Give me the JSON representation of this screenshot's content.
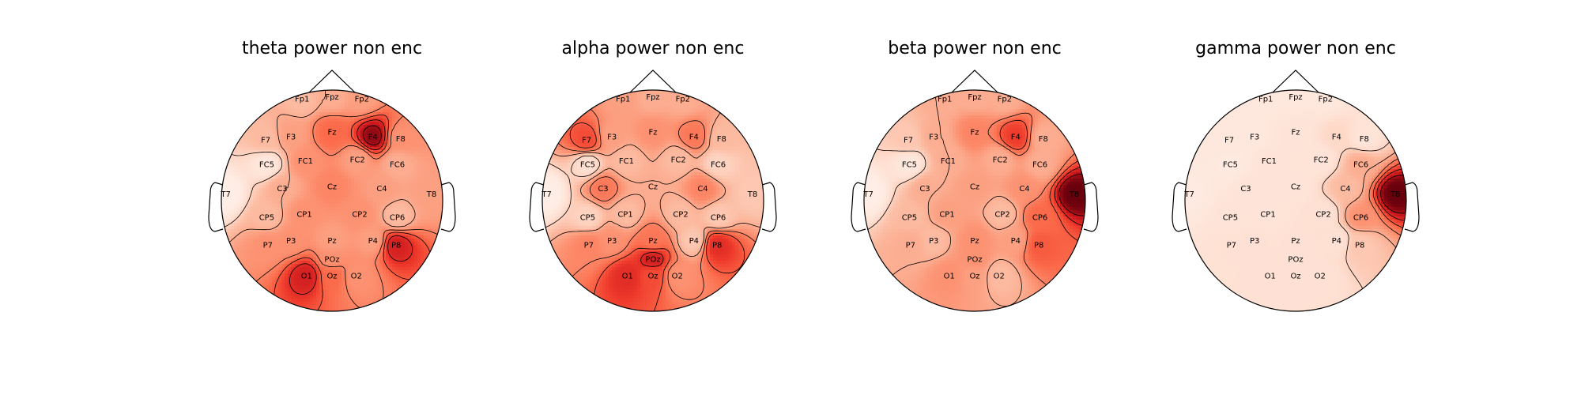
{
  "chart_data": [
    {
      "type": "heatmap",
      "title": "theta power non enc",
      "colormap": "Reds",
      "contours": true,
      "electrodes": [
        {
          "label": "Fp1",
          "value": 0.3
        },
        {
          "label": "Fpz",
          "value": 0.35
        },
        {
          "label": "Fp2",
          "value": 0.4
        },
        {
          "label": "F7",
          "value": 0.3
        },
        {
          "label": "F3",
          "value": 0.4
        },
        {
          "label": "Fz",
          "value": 0.6
        },
        {
          "label": "F4",
          "value": 0.95
        },
        {
          "label": "F8",
          "value": 0.45
        },
        {
          "label": "FC5",
          "value": 0.1
        },
        {
          "label": "FC1",
          "value": 0.45
        },
        {
          "label": "FC2",
          "value": 0.4
        },
        {
          "label": "FC6",
          "value": 0.35
        },
        {
          "label": "T7",
          "value": 0.05
        },
        {
          "label": "C3",
          "value": 0.35
        },
        {
          "label": "Cz",
          "value": 0.5
        },
        {
          "label": "C4",
          "value": 0.4
        },
        {
          "label": "T8",
          "value": 0.4
        },
        {
          "label": "CP5",
          "value": 0.3
        },
        {
          "label": "CP1",
          "value": 0.45
        },
        {
          "label": "CP2",
          "value": 0.45
        },
        {
          "label": "CP6",
          "value": 0.3
        },
        {
          "label": "P7",
          "value": 0.45
        },
        {
          "label": "P3",
          "value": 0.45
        },
        {
          "label": "Pz",
          "value": 0.4
        },
        {
          "label": "P4",
          "value": 0.4
        },
        {
          "label": "P8",
          "value": 0.85
        },
        {
          "label": "POz",
          "value": 0.45
        },
        {
          "label": "O1",
          "value": 0.85
        },
        {
          "label": "Oz",
          "value": 0.6
        },
        {
          "label": "O2",
          "value": 0.45
        }
      ]
    },
    {
      "type": "heatmap",
      "title": "alpha power non enc",
      "colormap": "Reds",
      "contours": true,
      "electrodes": [
        {
          "label": "Fp1",
          "value": 0.4
        },
        {
          "label": "Fpz",
          "value": 0.35
        },
        {
          "label": "Fp2",
          "value": 0.35
        },
        {
          "label": "F7",
          "value": 0.7
        },
        {
          "label": "F3",
          "value": 0.4
        },
        {
          "label": "Fz",
          "value": 0.45
        },
        {
          "label": "F4",
          "value": 0.55
        },
        {
          "label": "F8",
          "value": 0.3
        },
        {
          "label": "FC5",
          "value": 0.15
        },
        {
          "label": "FC1",
          "value": 0.3
        },
        {
          "label": "FC2",
          "value": 0.3
        },
        {
          "label": "FC6",
          "value": 0.2
        },
        {
          "label": "T7",
          "value": 0.05
        },
        {
          "label": "C3",
          "value": 0.55
        },
        {
          "label": "Cz",
          "value": 0.35
        },
        {
          "label": "C4",
          "value": 0.5
        },
        {
          "label": "T8",
          "value": 0.25
        },
        {
          "label": "CP5",
          "value": 0.2
        },
        {
          "label": "CP1",
          "value": 0.3
        },
        {
          "label": "CP2",
          "value": 0.3
        },
        {
          "label": "CP6",
          "value": 0.25
        },
        {
          "label": "P7",
          "value": 0.5
        },
        {
          "label": "P3",
          "value": 0.45
        },
        {
          "label": "Pz",
          "value": 0.55
        },
        {
          "label": "P4",
          "value": 0.25
        },
        {
          "label": "P8",
          "value": 0.8
        },
        {
          "label": "POz",
          "value": 0.85
        },
        {
          "label": "O1",
          "value": 0.8
        },
        {
          "label": "Oz",
          "value": 0.7
        },
        {
          "label": "O2",
          "value": 0.45
        }
      ]
    },
    {
      "type": "heatmap",
      "title": "beta power non enc",
      "colormap": "Reds",
      "contours": true,
      "electrodes": [
        {
          "label": "Fp1",
          "value": 0.35
        },
        {
          "label": "Fpz",
          "value": 0.35
        },
        {
          "label": "Fp2",
          "value": 0.35
        },
        {
          "label": "F7",
          "value": 0.25
        },
        {
          "label": "F3",
          "value": 0.35
        },
        {
          "label": "Fz",
          "value": 0.5
        },
        {
          "label": "F4",
          "value": 0.75
        },
        {
          "label": "F8",
          "value": 0.35
        },
        {
          "label": "FC5",
          "value": 0.1
        },
        {
          "label": "FC1",
          "value": 0.35
        },
        {
          "label": "FC2",
          "value": 0.35
        },
        {
          "label": "FC6",
          "value": 0.35
        },
        {
          "label": "T7",
          "value": 0.05
        },
        {
          "label": "C3",
          "value": 0.35
        },
        {
          "label": "Cz",
          "value": 0.4
        },
        {
          "label": "C4",
          "value": 0.45
        },
        {
          "label": "T8",
          "value": 1.0
        },
        {
          "label": "CP5",
          "value": 0.3
        },
        {
          "label": "CP1",
          "value": 0.4
        },
        {
          "label": "CP2",
          "value": 0.3
        },
        {
          "label": "CP6",
          "value": 0.6
        },
        {
          "label": "P7",
          "value": 0.35
        },
        {
          "label": "P3",
          "value": 0.3
        },
        {
          "label": "Pz",
          "value": 0.45
        },
        {
          "label": "P4",
          "value": 0.4
        },
        {
          "label": "P8",
          "value": 0.65
        },
        {
          "label": "POz",
          "value": 0.45
        },
        {
          "label": "O1",
          "value": 0.45
        },
        {
          "label": "Oz",
          "value": 0.4
        },
        {
          "label": "O2",
          "value": 0.3
        }
      ]
    },
    {
      "type": "heatmap",
      "title": "gamma power non enc",
      "colormap": "Reds",
      "contours": true,
      "electrodes": [
        {
          "label": "Fp1",
          "value": 0.1
        },
        {
          "label": "Fpz",
          "value": 0.1
        },
        {
          "label": "Fp2",
          "value": 0.1
        },
        {
          "label": "F7",
          "value": 0.1
        },
        {
          "label": "F3",
          "value": 0.1
        },
        {
          "label": "Fz",
          "value": 0.12
        },
        {
          "label": "F4",
          "value": 0.18
        },
        {
          "label": "F8",
          "value": 0.12
        },
        {
          "label": "FC5",
          "value": 0.08
        },
        {
          "label": "FC1",
          "value": 0.12
        },
        {
          "label": "FC2",
          "value": 0.12
        },
        {
          "label": "FC6",
          "value": 0.35
        },
        {
          "label": "T7",
          "value": 0.08
        },
        {
          "label": "C3",
          "value": 0.12
        },
        {
          "label": "Cz",
          "value": 0.12
        },
        {
          "label": "C4",
          "value": 0.3
        },
        {
          "label": "T8",
          "value": 1.0
        },
        {
          "label": "CP5",
          "value": 0.12
        },
        {
          "label": "CP1",
          "value": 0.12
        },
        {
          "label": "CP2",
          "value": 0.14
        },
        {
          "label": "CP6",
          "value": 0.45
        },
        {
          "label": "P7",
          "value": 0.14
        },
        {
          "label": "P3",
          "value": 0.14
        },
        {
          "label": "Pz",
          "value": 0.14
        },
        {
          "label": "P4",
          "value": 0.14
        },
        {
          "label": "P8",
          "value": 0.25
        },
        {
          "label": "POz",
          "value": 0.14
        },
        {
          "label": "O1",
          "value": 0.14
        },
        {
          "label": "Oz",
          "value": 0.14
        },
        {
          "label": "O2",
          "value": 0.14
        }
      ]
    }
  ]
}
